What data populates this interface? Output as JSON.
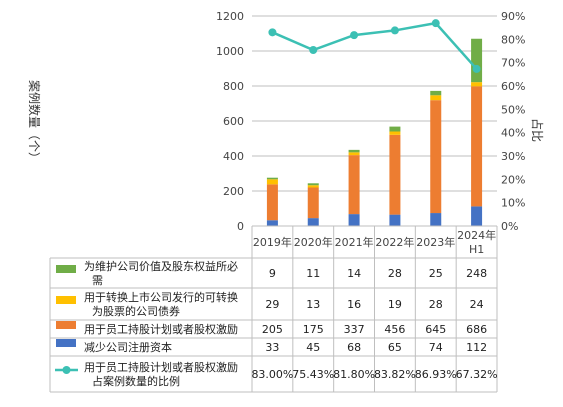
{
  "chart_data": {
    "type": "bar",
    "stacked": true,
    "categories": [
      "2019年",
      "2020年",
      "2021年",
      "2022年",
      "2023年",
      "2024年H1"
    ],
    "ylabel": "案例数量（个）",
    "y2label": "占比",
    "ylim": [
      0,
      1200
    ],
    "y2lim": [
      0,
      0.9
    ],
    "y_ticks": [
      "0",
      "200",
      "400",
      "600",
      "800",
      "1000",
      "1200"
    ],
    "y2_ticks": [
      "0%",
      "10%",
      "20%",
      "30%",
      "40%",
      "50%",
      "60%",
      "70%",
      "80%",
      "90%"
    ],
    "series": [
      {
        "name": "为维护公司价值及股东权益所必需",
        "type": "bar",
        "color": "#70ad47",
        "values": [
          9,
          11,
          14,
          28,
          25,
          248
        ],
        "labels": [
          "9",
          "11",
          "14",
          "28",
          "25",
          "248"
        ]
      },
      {
        "name": "用于转换上市公司发行的可转换为股票的公司债券",
        "type": "bar",
        "color": "#ffc000",
        "values": [
          29,
          13,
          16,
          19,
          28,
          24
        ],
        "labels": [
          "29",
          "13",
          "16",
          "19",
          "28",
          "24"
        ]
      },
      {
        "name": "用于员工持股计划或者股权激励",
        "type": "bar",
        "color": "#ed7d31",
        "values": [
          205,
          175,
          337,
          456,
          645,
          686
        ],
        "labels": [
          "205",
          "175",
          "337",
          "456",
          "645",
          "686"
        ]
      },
      {
        "name": "减少公司注册资本",
        "type": "bar",
        "color": "#4472c4",
        "values": [
          33,
          45,
          68,
          65,
          74,
          112
        ],
        "labels": [
          "33",
          "45",
          "68",
          "65",
          "74",
          "112"
        ]
      },
      {
        "name": "用于员工持股计划或者股权激励占案例数量的比例",
        "type": "line",
        "axis": "right",
        "color": "#3cc0b4",
        "values": [
          0.83,
          0.7543,
          0.818,
          0.8382,
          0.8693,
          0.6732
        ],
        "labels": [
          "83.00%",
          "75.43%",
          "81.80%",
          "83.82%",
          "86.93%",
          "67.32%"
        ]
      }
    ],
    "grid": true,
    "legend": "data table below chart"
  }
}
